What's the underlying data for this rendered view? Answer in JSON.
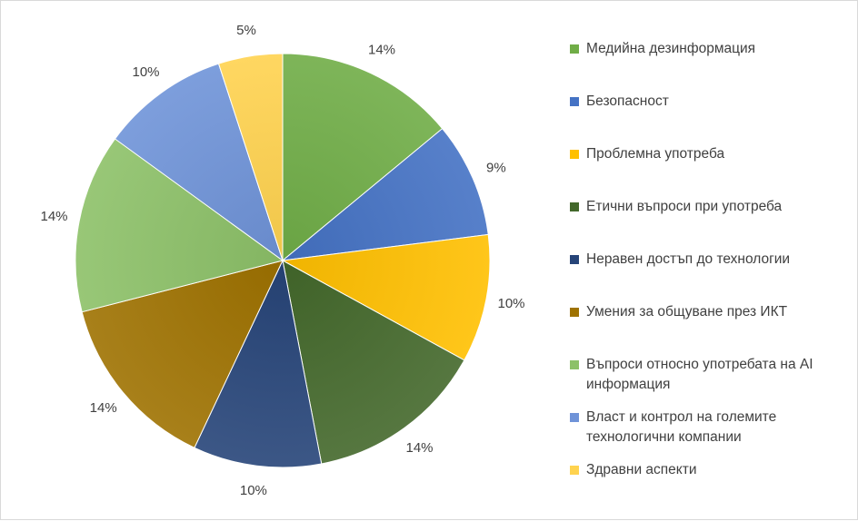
{
  "chart_data": {
    "type": "pie",
    "start_angle_deg": 0,
    "direction": "clockwise",
    "slices": [
      {
        "label": "Медийна дезинформация",
        "value": 14,
        "display": "14%",
        "color": "#70AD47"
      },
      {
        "label": "Безопасност",
        "value": 9,
        "display": "9%",
        "color": "#4472C4"
      },
      {
        "label": "Проблемна употреба",
        "value": 10,
        "display": "10%",
        "color": "#FFC000"
      },
      {
        "label": "Етични въпроси при употреба",
        "value": 14,
        "display": "14%",
        "color": "#43682B"
      },
      {
        "label": "Неравен достъп до технологии",
        "value": 10,
        "display": "10%",
        "color": "#264478"
      },
      {
        "label": "Умения за общуване през ИКТ",
        "value": 14,
        "display": "14%",
        "color": "#9E7200"
      },
      {
        "label": "Въпроси относно употребата на  AI\nинформация",
        "value": 14,
        "display": "14%",
        "color": "#8CC168"
      },
      {
        "label": "Власт и контрол на големите\nтехнологични компании",
        "value": 10,
        "display": "10%",
        "color": "#6F93D8"
      },
      {
        "label": "Здравни аспекти",
        "value": 5,
        "display": "5%",
        "color": "#FFD34F"
      }
    ],
    "legend": "right"
  }
}
